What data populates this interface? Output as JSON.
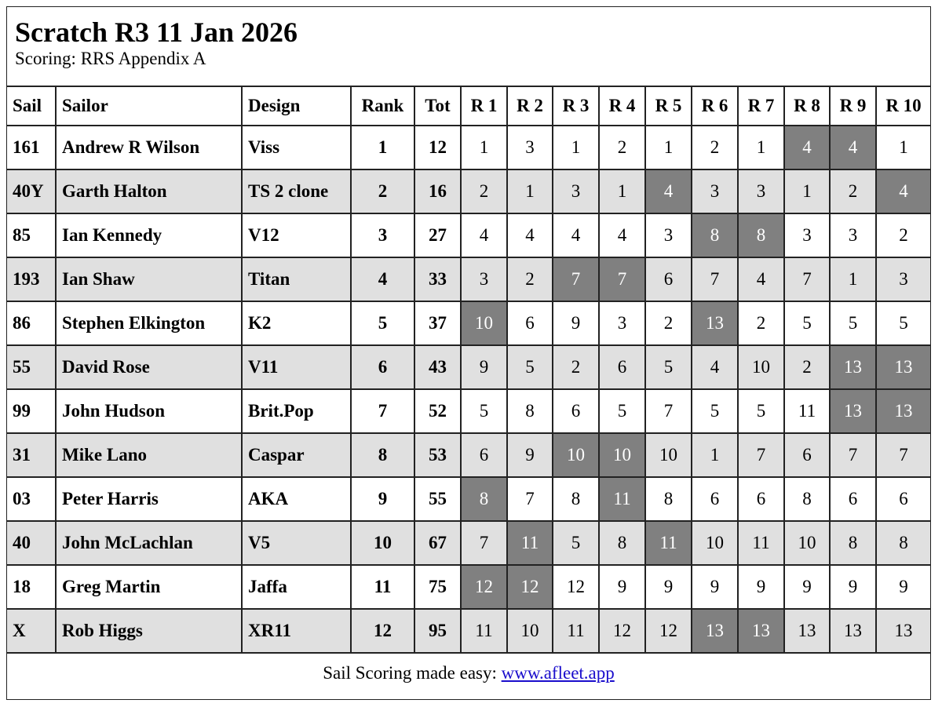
{
  "title": "Scratch R3 11 Jan 2026",
  "subtitle": "Scoring: RRS Appendix A",
  "colors": {
    "stripe": "#e0e0e0",
    "discard": "#808080"
  },
  "columns": [
    "Sail",
    "Sailor",
    "Design",
    "Rank",
    "Tot",
    "R 1",
    "R 2",
    "R 3",
    "R 4",
    "R 5",
    "R 6",
    "R 7",
    "R 8",
    "R 9",
    "R 10"
  ],
  "rows": [
    {
      "sail": "161",
      "sailor": "Andrew R Wilson",
      "design": "Viss",
      "rank": "1",
      "tot": "12",
      "races": [
        "1",
        "3",
        "1",
        "2",
        "1",
        "2",
        "1",
        "4",
        "4",
        "1"
      ],
      "discards": [
        8,
        9
      ]
    },
    {
      "sail": "40Y",
      "sailor": "Garth Halton",
      "design": "TS 2 clone",
      "rank": "2",
      "tot": "16",
      "races": [
        "2",
        "1",
        "3",
        "1",
        "4",
        "3",
        "3",
        "1",
        "2",
        "4"
      ],
      "discards": [
        5,
        10
      ]
    },
    {
      "sail": "85",
      "sailor": "Ian Kennedy",
      "design": "V12",
      "rank": "3",
      "tot": "27",
      "races": [
        "4",
        "4",
        "4",
        "4",
        "3",
        "8",
        "8",
        "3",
        "3",
        "2"
      ],
      "discards": [
        6,
        7
      ]
    },
    {
      "sail": "193",
      "sailor": "Ian Shaw",
      "design": "Titan",
      "rank": "4",
      "tot": "33",
      "races": [
        "3",
        "2",
        "7",
        "7",
        "6",
        "7",
        "4",
        "7",
        "1",
        "3"
      ],
      "discards": [
        3,
        4
      ]
    },
    {
      "sail": "86",
      "sailor": "Stephen Elkington",
      "design": "K2",
      "rank": "5",
      "tot": "37",
      "races": [
        "10",
        "6",
        "9",
        "3",
        "2",
        "13",
        "2",
        "5",
        "5",
        "5"
      ],
      "discards": [
        1,
        6
      ]
    },
    {
      "sail": "55",
      "sailor": "David Rose",
      "design": "V11",
      "rank": "6",
      "tot": "43",
      "races": [
        "9",
        "5",
        "2",
        "6",
        "5",
        "4",
        "10",
        "2",
        "13",
        "13"
      ],
      "discards": [
        9,
        10
      ]
    },
    {
      "sail": "99",
      "sailor": "John Hudson",
      "design": "Brit.Pop",
      "rank": "7",
      "tot": "52",
      "races": [
        "5",
        "8",
        "6",
        "5",
        "7",
        "5",
        "5",
        "11",
        "13",
        "13"
      ],
      "discards": [
        9,
        10
      ]
    },
    {
      "sail": "31",
      "sailor": "Mike Lano",
      "design": "Caspar",
      "rank": "8",
      "tot": "53",
      "races": [
        "6",
        "9",
        "10",
        "10",
        "10",
        "1",
        "7",
        "6",
        "7",
        "7"
      ],
      "discards": [
        3,
        4
      ]
    },
    {
      "sail": "03",
      "sailor": "Peter Harris",
      "design": "AKA",
      "rank": "9",
      "tot": "55",
      "races": [
        "8",
        "7",
        "8",
        "11",
        "8",
        "6",
        "6",
        "8",
        "6",
        "6"
      ],
      "discards": [
        1,
        4
      ]
    },
    {
      "sail": "40",
      "sailor": "John McLachlan",
      "design": "V5",
      "rank": "10",
      "tot": "67",
      "races": [
        "7",
        "11",
        "5",
        "8",
        "11",
        "10",
        "11",
        "10",
        "8",
        "8"
      ],
      "discards": [
        2,
        5
      ]
    },
    {
      "sail": "18",
      "sailor": "Greg Martin",
      "design": "Jaffa",
      "rank": "11",
      "tot": "75",
      "races": [
        "12",
        "12",
        "12",
        "9",
        "9",
        "9",
        "9",
        "9",
        "9",
        "9"
      ],
      "discards": [
        1,
        2
      ]
    },
    {
      "sail": "X",
      "sailor": "Rob Higgs",
      "design": "XR11",
      "rank": "12",
      "tot": "95",
      "races": [
        "11",
        "10",
        "11",
        "12",
        "12",
        "13",
        "13",
        "13",
        "13",
        "13"
      ],
      "discards": [
        6,
        7
      ]
    }
  ],
  "footer": {
    "text": "Sail Scoring made easy: ",
    "link": "www.afleet.app"
  }
}
